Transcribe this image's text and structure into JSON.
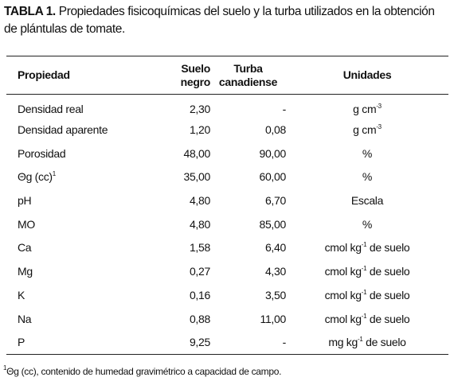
{
  "title": {
    "label": "TABLA 1.",
    "text": "Propiedades fisicoquímicas del suelo y la turba utilizados en la obtención de plántulas de tomate."
  },
  "table": {
    "header": [
      [
        "Propiedad"
      ],
      [
        "Suelo",
        "negro"
      ],
      [
        "Turba",
        "canadiense"
      ],
      [
        "Unidades"
      ]
    ],
    "rows": [
      [
        "Densidad real",
        "2,30",
        "-",
        {
          "text": "g cm",
          "sup": "-3"
        }
      ],
      [
        "Densidad aparente",
        "1,20",
        "0,08",
        {
          "text": "g cm",
          "sup": "-3"
        }
      ],
      [
        "Porosidad",
        "48,00",
        "90,00",
        "%"
      ],
      [
        {
          "text": "Θg (cc)",
          "sup": "1"
        },
        "35,00",
        "60,00",
        "%"
      ],
      [
        "pH",
        "4,80",
        "6,70",
        "Escala"
      ],
      [
        "MO",
        "4,80",
        "85,00",
        "%"
      ],
      [
        "Ca",
        "1,58",
        "6,40",
        {
          "text": "cmol kg",
          "sup": "-1",
          "rest": " de suelo"
        }
      ],
      [
        "Mg",
        "0,27",
        "4,30",
        {
          "text": "cmol kg",
          "sup": "-1",
          "rest": " de suelo"
        }
      ],
      [
        "K",
        "0,16",
        "3,50",
        {
          "text": "cmol kg",
          "sup": "-1",
          "rest": " de suelo"
        }
      ],
      [
        "Na",
        "0,88",
        "11,00",
        {
          "text": "cmol kg",
          "sup": "-1",
          "rest": " de suelo"
        }
      ],
      [
        "P",
        "9,25",
        "-",
        {
          "text": "mg kg",
          "sup": "-1",
          "rest": " de suelo"
        }
      ]
    ]
  },
  "footnote": {
    "sup": "1",
    "text": "Θg (cc), contenido de humedad gravimétrico a capacidad de campo."
  }
}
